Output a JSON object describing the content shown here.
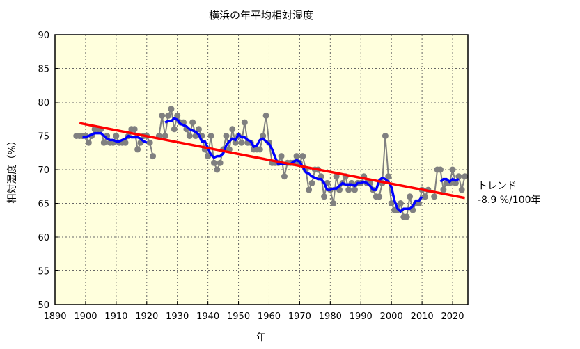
{
  "chart_data": {
    "type": "line",
    "title": "横浜の年平均相対湿度",
    "xlabel": "年",
    "ylabel": "相対湿度（%）",
    "xlim": [
      1890,
      2025
    ],
    "ylim": [
      50,
      90
    ],
    "xticks": [
      1890,
      1900,
      1910,
      1920,
      1930,
      1940,
      1950,
      1960,
      1970,
      1980,
      1990,
      2000,
      2010,
      2020
    ],
    "yticks": [
      50,
      55,
      60,
      65,
      70,
      75,
      80,
      85,
      90
    ],
    "grid": true,
    "background": "#ffffdd",
    "colors": {
      "annual": "#808080",
      "moving_average": "#0000ff",
      "trend": "#ff0000"
    },
    "start_year": 1897,
    "values": [
      75,
      75,
      75,
      75,
      74,
      75,
      76,
      76,
      76,
      74,
      75,
      74,
      74,
      75,
      74,
      74,
      74,
      75,
      76,
      76,
      73,
      74,
      75,
      75,
      74,
      72,
      null,
      75,
      78,
      75,
      78,
      79,
      76,
      78,
      77,
      77,
      76,
      75,
      77,
      75,
      76,
      75,
      73,
      72,
      75,
      71,
      70,
      71,
      73,
      75,
      73,
      76,
      74,
      75,
      74,
      77,
      74,
      74,
      73,
      73,
      73,
      75,
      78,
      74,
      71,
      71,
      71,
      72,
      69,
      71,
      71,
      71,
      72,
      71,
      72,
      70,
      67,
      68,
      70,
      70,
      69,
      66,
      68,
      67,
      65,
      69,
      67,
      68,
      69,
      67,
      68,
      67,
      68,
      68,
      69,
      68,
      68,
      67,
      66,
      66,
      68,
      75,
      69,
      65,
      64,
      64,
      65,
      63,
      63,
      66,
      64,
      65,
      65,
      67,
      66,
      67,
      null,
      66,
      70,
      70,
      67,
      68,
      68,
      70,
      68,
      69,
      67,
      69
    ],
    "moving_average_window": 5,
    "trend": {
      "x": [
        1898,
        2024
      ],
      "y": [
        76.9,
        65.8
      ]
    },
    "annotation": {
      "line1": "トレンド",
      "line2": "-8.9 %/100年"
    }
  }
}
